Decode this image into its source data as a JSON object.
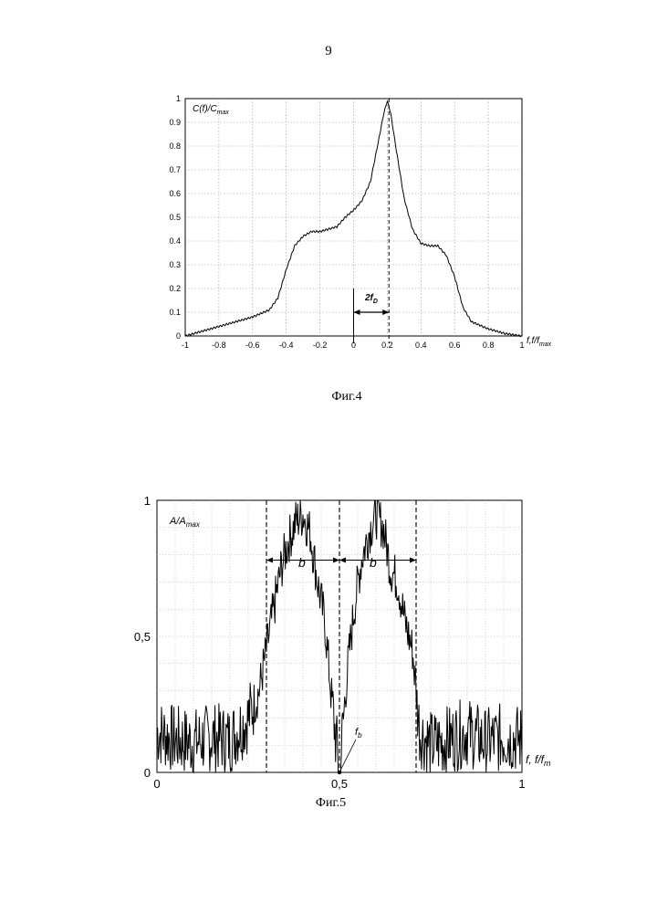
{
  "page_number": "9",
  "fig4": {
    "caption": "Фиг.4",
    "ylabel": "C(f)/C",
    "ylabel_sub": "max",
    "xlabel": "f,f/f",
    "xlabel_sub": "max",
    "annotation": "2f",
    "annotation_sub": "D"
  },
  "fig5": {
    "caption": "Фиг.5",
    "ylabel": "A/A",
    "ylabel_sub": "max",
    "xlabel": "f, f/f",
    "xlabel_sub": "m",
    "band_label_left": "b",
    "band_label_right": "b",
    "marker_label": "f",
    "marker_label_sub": "b"
  },
  "chart_data": [
    {
      "type": "line",
      "xlim": [
        -1,
        1
      ],
      "ylim": [
        0,
        1
      ],
      "x_ticks": [
        "-1",
        "-0.8",
        "-0.6",
        "-0.4",
        "-0.2",
        "0",
        "0.2",
        "0.4",
        "0.6",
        "0.8",
        "1"
      ],
      "y_ticks": [
        "0",
        "0.1",
        "0.2",
        "0.3",
        "0.4",
        "0.5",
        "0.6",
        "0.7",
        "0.8",
        "0.9",
        "1"
      ],
      "grid": true,
      "series": [
        {
          "x": [
            -1,
            -0.8,
            -0.6,
            -0.5,
            -0.45,
            -0.4,
            -0.35,
            -0.3,
            -0.25,
            -0.2,
            -0.15,
            -0.1,
            -0.05,
            0,
            0.05,
            0.1,
            0.15,
            0.18,
            0.2,
            0.22,
            0.25,
            0.3,
            0.35,
            0.4,
            0.45,
            0.5,
            0.55,
            0.6,
            0.65,
            0.7,
            0.8,
            0.9,
            1.0
          ],
          "y": [
            0.0,
            0.04,
            0.08,
            0.11,
            0.16,
            0.28,
            0.38,
            0.42,
            0.44,
            0.44,
            0.45,
            0.46,
            0.5,
            0.53,
            0.57,
            0.65,
            0.83,
            0.94,
            0.99,
            0.94,
            0.8,
            0.58,
            0.45,
            0.39,
            0.38,
            0.38,
            0.34,
            0.25,
            0.12,
            0.06,
            0.03,
            0.01,
            0.0
          ]
        }
      ],
      "vlines": [
        0,
        0.21
      ],
      "arrow": {
        "from": 0,
        "to": 0.21,
        "y": 0.1
      }
    },
    {
      "type": "line",
      "xlim": [
        0,
        1
      ],
      "ylim": [
        0,
        1
      ],
      "x_ticks": [
        "0",
        "0,5",
        "1"
      ],
      "y_ticks": [
        "0",
        "0,5",
        "1"
      ],
      "grid": true,
      "vlines": [
        0.3,
        0.5,
        0.71
      ],
      "arrows": [
        {
          "from": 0.3,
          "to": 0.5,
          "y": 0.78
        },
        {
          "from": 0.5,
          "to": 0.71,
          "y": 0.78
        }
      ],
      "marker": {
        "x": 0.5,
        "y": 0.0
      },
      "series": [
        {
          "x": [
            0,
            0.05,
            0.1,
            0.15,
            0.2,
            0.25,
            0.28,
            0.3,
            0.32,
            0.34,
            0.36,
            0.38,
            0.4,
            0.42,
            0.44,
            0.46,
            0.48,
            0.5,
            0.52,
            0.54,
            0.56,
            0.58,
            0.6,
            0.62,
            0.64,
            0.66,
            0.68,
            0.7,
            0.72,
            0.75,
            0.8,
            0.85,
            0.9,
            0.95,
            1.0
          ],
          "y": [
            0.15,
            0.12,
            0.11,
            0.13,
            0.12,
            0.2,
            0.3,
            0.45,
            0.6,
            0.75,
            0.85,
            0.92,
            0.95,
            0.88,
            0.7,
            0.55,
            0.25,
            0.0,
            0.35,
            0.6,
            0.78,
            0.88,
            0.95,
            0.9,
            0.75,
            0.7,
            0.55,
            0.45,
            0.15,
            0.1,
            0.12,
            0.15,
            0.11,
            0.13,
            0.12
          ]
        }
      ]
    }
  ]
}
